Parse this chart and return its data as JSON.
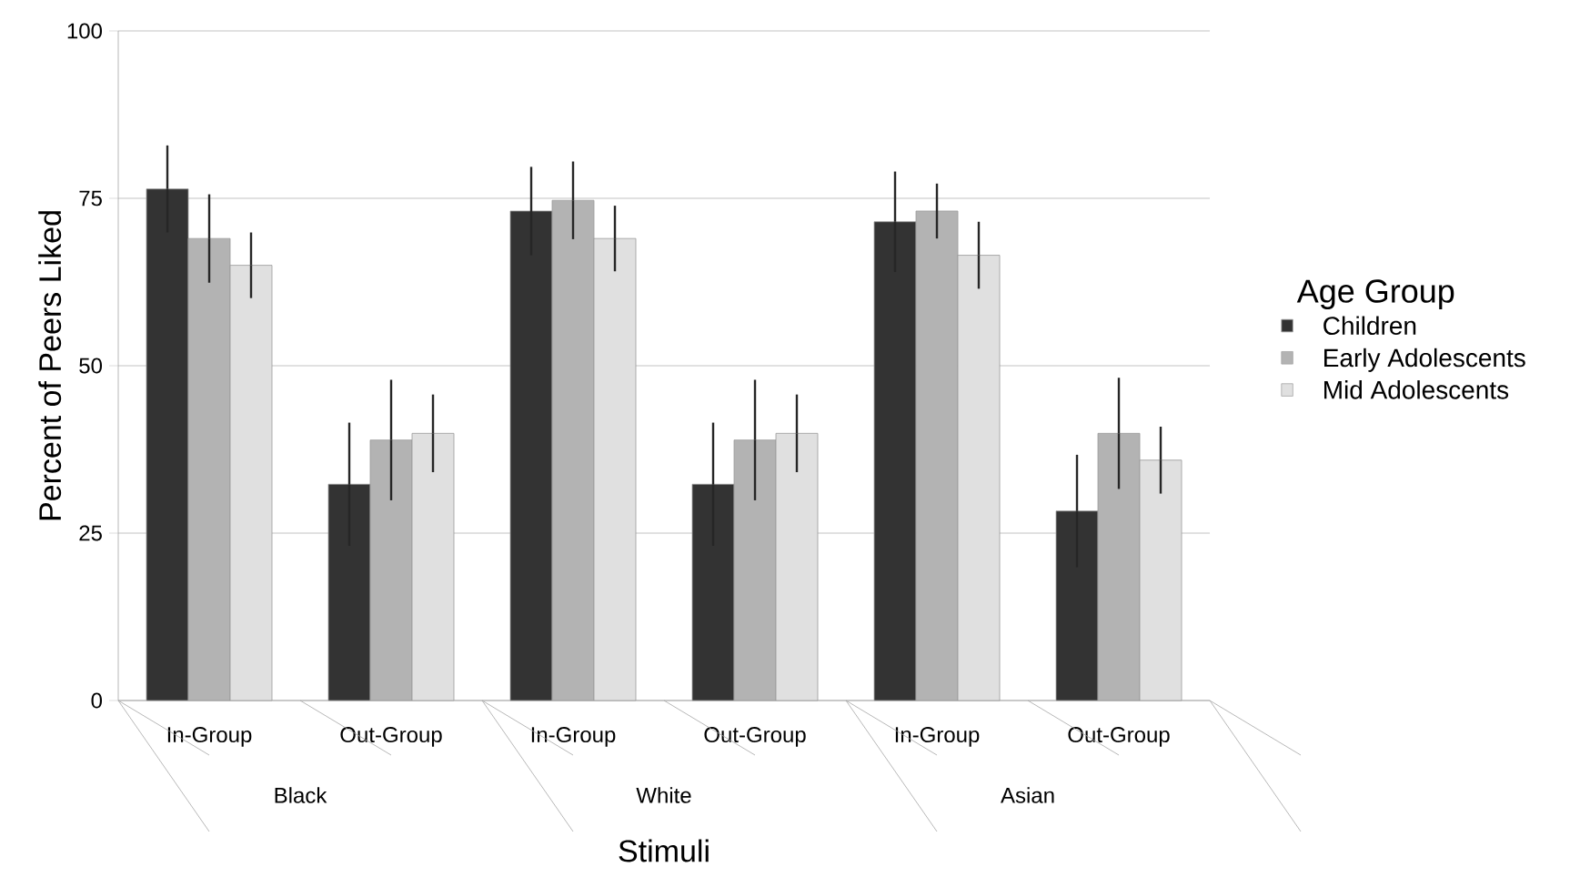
{
  "chart_data": {
    "type": "bar",
    "xlabel": "Stimuli",
    "ylabel": "Percent of Peers Liked",
    "legend_title": "Age Group",
    "categories": [
      "In-Group",
      "Out-Group",
      "In-Group",
      "Out-Group",
      "In-Group",
      "Out-Group"
    ],
    "annotations": [
      "Black",
      "White",
      "Asian"
    ],
    "series": [
      {
        "name": "Children",
        "color": "#333333",
        "values": [
          76.4,
          32.3,
          73.1,
          32.3,
          71.5,
          28.3
        ],
        "errors": [
          6.5,
          9.2,
          6.6,
          9.2,
          7.5,
          8.4
        ]
      },
      {
        "name": "Early Adolescents",
        "color": "#b3b3b3",
        "values": [
          69.0,
          38.9,
          74.7,
          38.9,
          73.1,
          39.9
        ],
        "errors": [
          6.6,
          9.0,
          5.8,
          9.0,
          4.1,
          8.3
        ]
      },
      {
        "name": "Mid Adolescents",
        "color": "#e0e0e0",
        "values": [
          65.0,
          39.9,
          69.0,
          39.9,
          66.5,
          35.9
        ],
        "errors": [
          4.9,
          5.8,
          4.9,
          5.8,
          5.0,
          5.0
        ]
      }
    ],
    "ylim": [
      0,
      100
    ],
    "yticks": [
      0,
      25,
      50,
      75,
      100
    ],
    "grid": "y",
    "legend": "right"
  }
}
